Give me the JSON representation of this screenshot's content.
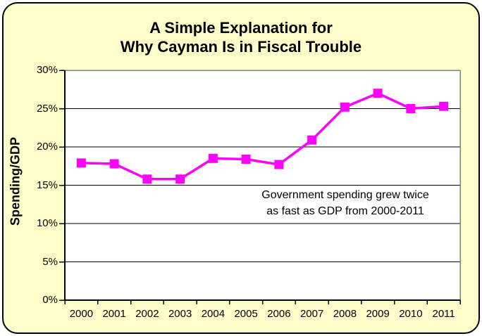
{
  "window": {
    "background_color": "#FFFFFF"
  },
  "card": {
    "background_color": "#FFFFCC",
    "border_color": "#000000"
  },
  "chart_data": {
    "type": "line",
    "title_line1": "A Simple Explanation for",
    "title_line2": "Why Cayman Is in Fiscal Trouble",
    "ylabel": "Spending/GDP",
    "xlabel": "",
    "categories": [
      "2000",
      "2001",
      "2002",
      "2003",
      "2004",
      "2005",
      "2006",
      "2007",
      "2008",
      "2009",
      "2010",
      "2011"
    ],
    "series": [
      {
        "name": "Spending/GDP",
        "values": [
          17.9,
          17.8,
          15.8,
          15.8,
          18.5,
          18.4,
          17.7,
          20.9,
          25.2,
          27.0,
          25.0,
          25.3
        ]
      }
    ],
    "ylim": [
      0,
      30
    ],
    "ytick_step": 5,
    "ytick_labels": [
      "0%",
      "5%",
      "10%",
      "15%",
      "20%",
      "25%",
      "30%"
    ],
    "grid": true,
    "legend": "none",
    "line_color": "#FF00FF",
    "marker": "square",
    "gridline_color": "#000000",
    "plot_border_color": "#808080",
    "plot_background": "#FFFFFF",
    "annotation_line1": "Government spending grew twice",
    "annotation_line2": "as fast as GDP from 2000-2011"
  }
}
